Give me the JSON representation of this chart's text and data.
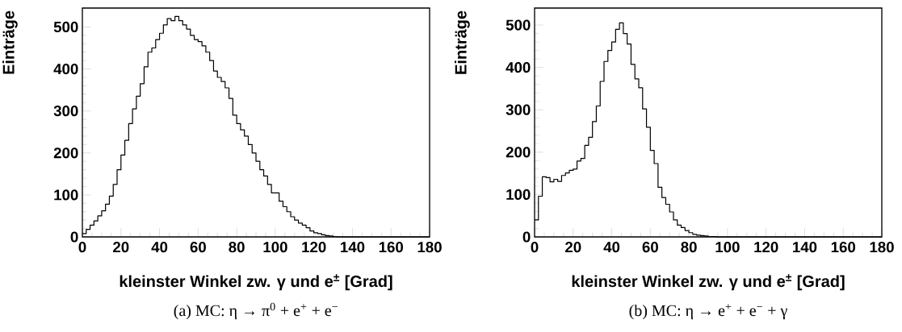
{
  "chart_data": [
    {
      "type": "histogram",
      "xlabel": "kleinster Winkel zw. γ und e$^{±}$ [Grad]",
      "ylabel": "Einträge",
      "annotations": [
        "(a) MC: η → π$^{0}$ + e$^{+}$ + e$^{−}$"
      ],
      "color": "#000000",
      "bins": [
        0,
        2,
        4,
        6,
        8,
        10,
        12,
        14,
        16,
        18,
        20,
        22,
        24,
        26,
        28,
        30,
        32,
        34,
        36,
        38,
        40,
        42,
        44,
        46,
        48,
        50,
        52,
        54,
        56,
        58,
        60,
        62,
        64,
        66,
        68,
        70,
        72,
        74,
        76,
        78,
        80,
        82,
        84,
        86,
        88,
        90,
        92,
        94,
        96,
        98,
        100,
        102,
        104,
        106,
        108,
        110,
        112,
        114,
        116,
        118,
        120,
        122,
        124,
        126,
        128,
        130,
        132,
        134,
        136,
        138,
        140,
        142,
        144,
        146,
        148,
        150,
        152,
        154,
        156,
        158,
        160,
        162,
        164,
        166,
        168,
        170,
        172,
        174,
        176,
        178,
        180
      ],
      "values": [
        8,
        18,
        28,
        38,
        50,
        62,
        78,
        97,
        125,
        160,
        195,
        230,
        270,
        305,
        335,
        365,
        405,
        440,
        450,
        470,
        485,
        505,
        520,
        515,
        525,
        515,
        505,
        495,
        480,
        470,
        465,
        455,
        440,
        420,
        395,
        380,
        370,
        355,
        330,
        290,
        270,
        255,
        240,
        220,
        200,
        180,
        160,
        145,
        125,
        105,
        105,
        85,
        72,
        60,
        48,
        40,
        33,
        28,
        22,
        14,
        10,
        8,
        5,
        3,
        2,
        1,
        0,
        0,
        0,
        0,
        0,
        0,
        0,
        0,
        0,
        0,
        0,
        0,
        0,
        0,
        0,
        0,
        0,
        0,
        0,
        0,
        0,
        0,
        0,
        0
      ],
      "xlim": [
        0,
        180
      ],
      "ylim": [
        0,
        545
      ],
      "xticks": [
        0,
        20,
        40,
        60,
        80,
        100,
        120,
        140,
        160,
        180
      ],
      "yticks": [
        0,
        100,
        200,
        300,
        400,
        500
      ]
    },
    {
      "type": "histogram",
      "xlabel": "kleinster Winkel zw. γ und e$^{±}$ [Grad]",
      "ylabel": "Einträge",
      "annotations": [
        "(b) MC: η → e$^{+}$ + e$^{−}$ + γ"
      ],
      "color": "#000000",
      "bins": [
        0,
        2,
        4,
        6,
        8,
        10,
        12,
        14,
        16,
        18,
        20,
        22,
        24,
        26,
        28,
        30,
        32,
        34,
        36,
        38,
        40,
        42,
        44,
        46,
        48,
        50,
        52,
        54,
        56,
        58,
        60,
        62,
        64,
        66,
        68,
        70,
        72,
        74,
        76,
        78,
        80,
        82,
        84,
        86,
        88,
        90,
        92,
        94,
        96,
        98,
        100,
        102,
        104,
        106,
        108,
        110,
        112,
        114,
        116,
        118,
        120,
        122,
        124,
        126,
        128,
        130,
        132,
        134,
        136,
        138,
        140,
        142,
        144,
        146,
        148,
        150,
        152,
        154,
        156,
        158,
        160,
        162,
        164,
        166,
        168,
        170,
        172,
        174,
        176,
        178,
        180
      ],
      "values": [
        40,
        96,
        142,
        140,
        130,
        136,
        131,
        145,
        151,
        157,
        160,
        179,
        185,
        216,
        235,
        272,
        309,
        367,
        414,
        440,
        460,
        490,
        505,
        480,
        455,
        407,
        373,
        352,
        302,
        259,
        204,
        173,
        117,
        93,
        77,
        59,
        40,
        28,
        22,
        15,
        10,
        6,
        4,
        3,
        2,
        1,
        1,
        0,
        0,
        0,
        0,
        0,
        0,
        0,
        0,
        0,
        0,
        0,
        0,
        0,
        0,
        0,
        0,
        0,
        0,
        0,
        0,
        0,
        0,
        0,
        0,
        0,
        0,
        0,
        0,
        0,
        0,
        0,
        0,
        0,
        0,
        0,
        0,
        0,
        0,
        0,
        0,
        0,
        0,
        0
      ],
      "xlim": [
        0,
        180
      ],
      "ylim": [
        0,
        540
      ],
      "xticks": [
        0,
        20,
        40,
        60,
        80,
        100,
        120,
        140,
        160,
        180
      ],
      "yticks": [
        0,
        100,
        200,
        300,
        400,
        500
      ]
    }
  ]
}
